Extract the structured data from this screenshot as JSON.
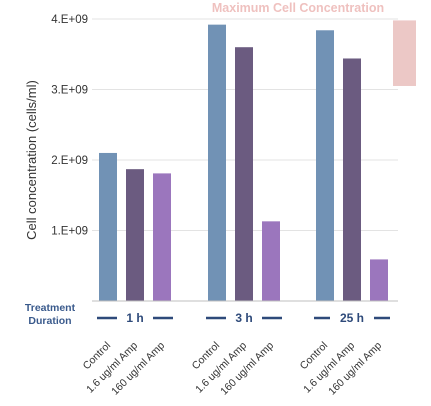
{
  "chart_data": {
    "type": "bar",
    "title": "",
    "ylabel": "Cell concentration (cells/ml)",
    "xlabel": "",
    "ylim": [
      0,
      4000000000
    ],
    "y_ticks": [
      1000000000,
      2000000000,
      3000000000,
      4000000000
    ],
    "y_tick_labels": [
      "1.E+09",
      "2.E+09",
      "3.E+09",
      "4.E+09"
    ],
    "grid": true,
    "treatment_label_line1": "Treatment",
    "treatment_label_line2": "Duration",
    "groups": [
      {
        "label": "1 h",
        "bars": [
          {
            "category": "Control",
            "value": 2100000000,
            "color": "#7192b5"
          },
          {
            "category": "1.6 ug/ml Amp",
            "value": 1870000000,
            "color": "#6b5b80"
          },
          {
            "category": "160 ug/ml Amp",
            "value": 1810000000,
            "color": "#9b76bd"
          }
        ]
      },
      {
        "label": "3 h",
        "bars": [
          {
            "category": "Control",
            "value": 3920000000,
            "color": "#7192b5"
          },
          {
            "category": "1.6 ug/ml Amp",
            "value": 3600000000,
            "color": "#6b5b80"
          },
          {
            "category": "160 ug/ml Amp",
            "value": 1130000000,
            "color": "#9b76bd"
          }
        ]
      },
      {
        "label": "25 h",
        "bars": [
          {
            "category": "Control",
            "value": 3840000000,
            "color": "#7192b5"
          },
          {
            "category": "1.6 ug/ml Amp",
            "value": 3440000000,
            "color": "#6b5b80"
          },
          {
            "category": "160 ug/ml Amp",
            "value": 590000000,
            "color": "#9b76bd"
          }
        ]
      }
    ],
    "max_band": {
      "label": "Maximum Cell Concentration",
      "y_from": 3050000000,
      "y_to": 3980000000,
      "color": "#ecc8c6"
    }
  }
}
